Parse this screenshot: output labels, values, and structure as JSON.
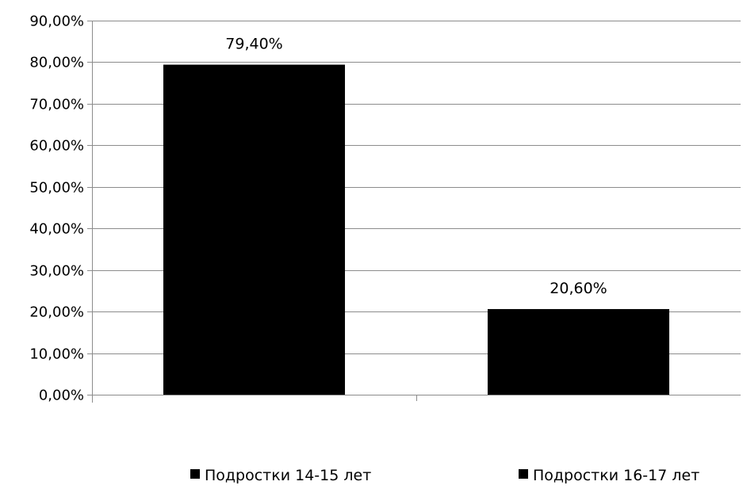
{
  "chart_data": {
    "type": "bar",
    "title": "",
    "xlabel": "",
    "ylabel": "",
    "categories": [
      "Подростки 14-15 лет",
      "Подростки 16-17 лет"
    ],
    "series": [
      {
        "name": "Подростки 14-15 лет",
        "values": [
          79.4,
          null
        ]
      },
      {
        "name": "Подростки 16-17 лет",
        "values": [
          null,
          20.6
        ]
      }
    ],
    "data_labels": [
      "79,40%",
      "20,60%"
    ],
    "ylim": [
      0,
      90
    ],
    "yticks": [
      0,
      10,
      20,
      30,
      40,
      50,
      60,
      70,
      80,
      90
    ],
    "ytick_labels": [
      "0,00%",
      "10,00%",
      "20,00%",
      "30,00%",
      "40,00%",
      "50,00%",
      "60,00%",
      "70,00%",
      "80,00%",
      "90,00%"
    ],
    "grid": true,
    "legend_position": "bottom",
    "bar_color": "#000000",
    "grid_color": "#8c8c8c"
  }
}
